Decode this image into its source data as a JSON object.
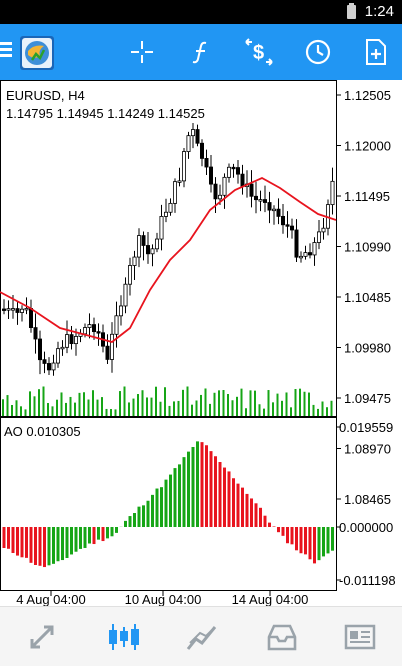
{
  "status": {
    "time": "1:24"
  },
  "toolbar": {
    "icons": [
      "menu-icon",
      "app-logo",
      "crosshair-icon",
      "function-icon",
      "trade-dollar-icon",
      "clock-icon",
      "new-order-icon"
    ]
  },
  "chart": {
    "symbol_timeframe": "EURUSD, H4",
    "ohlc": "1.14795 1.14945 1.14249 1.14525",
    "price_ticks": [
      "1.12505",
      "1.12000",
      "1.11495",
      "1.10990",
      "1.10485",
      "1.09980",
      "1.09475",
      "1.08970",
      "1.08465"
    ],
    "ao_label": "AO 0.010305",
    "ao_ticks": [
      "0.019559",
      "0.000000",
      "-0.011198"
    ],
    "time_ticks": [
      "4 Aug 04:00",
      "10 Aug 04:00",
      "14 Aug 04:00"
    ],
    "colors": {
      "bull": "#ffffff",
      "bear": "#000000",
      "ma": "#e8141e",
      "volume": "#16a516",
      "ao_up": "#16a516",
      "ao_down": "#e8141e",
      "accent": "#2196f3"
    }
  },
  "bottom_nav": {
    "items": [
      "quotes-icon",
      "chart-icon",
      "trade-icon",
      "history-icon",
      "news-icon"
    ]
  }
}
